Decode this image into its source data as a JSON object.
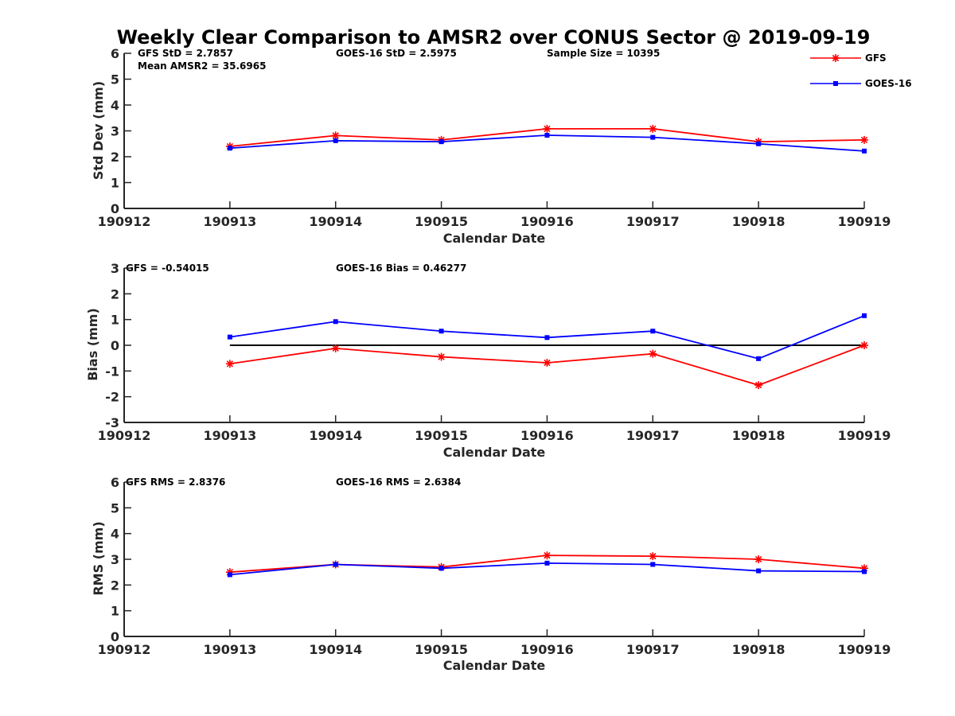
{
  "figure": {
    "title": "Weekly Clear Comparison to AMSR2 over CONUS Sector @ 2019-09-19"
  },
  "legend": [
    {
      "label": "GFS",
      "color": "#ff0000",
      "marker": "asterisk"
    },
    {
      "label": "GOES-16",
      "color": "#0000ff",
      "marker": "square"
    }
  ],
  "chart_data": [
    {
      "type": "line",
      "xlabel": "Calendar Date",
      "ylabel": "Std Dev (mm)",
      "x_ticks": [
        "190912",
        "190913",
        "190914",
        "190915",
        "190916",
        "190917",
        "190918",
        "190919"
      ],
      "xlim": [
        "190912",
        "190919"
      ],
      "ylim": [
        0,
        6
      ],
      "y_ticks": [
        0,
        1,
        2,
        3,
        4,
        5,
        6
      ],
      "x": [
        "190913",
        "190914",
        "190915",
        "190916",
        "190917",
        "190918",
        "190919"
      ],
      "series": [
        {
          "name": "GFS",
          "color": "#ff0000",
          "values": [
            2.4,
            2.82,
            2.65,
            3.08,
            3.08,
            2.58,
            2.65
          ]
        },
        {
          "name": "GOES-16",
          "color": "#0000ff",
          "values": [
            2.33,
            2.62,
            2.58,
            2.83,
            2.75,
            2.5,
            2.22
          ]
        }
      ],
      "annotations": [
        "GFS StD = 2.7857",
        "Mean AMSR2 = 35.6965",
        "GOES-16 StD = 2.5975",
        "Sample Size = 10395"
      ]
    },
    {
      "type": "line",
      "xlabel": "Calendar Date",
      "ylabel": "Bias (mm)",
      "x_ticks": [
        "190912",
        "190913",
        "190914",
        "190915",
        "190916",
        "190917",
        "190918",
        "190919"
      ],
      "xlim": [
        "190912",
        "190919"
      ],
      "ylim": [
        -3,
        3
      ],
      "y_ticks": [
        -3,
        -2,
        -1,
        0,
        1,
        2,
        3
      ],
      "zero_line": true,
      "x": [
        "190913",
        "190914",
        "190915",
        "190916",
        "190917",
        "190918",
        "190919"
      ],
      "series": [
        {
          "name": "GFS",
          "color": "#ff0000",
          "values": [
            -0.72,
            -0.12,
            -0.45,
            -0.68,
            -0.33,
            -1.55,
            0.0
          ]
        },
        {
          "name": "GOES-16",
          "color": "#0000ff",
          "values": [
            0.32,
            0.92,
            0.55,
            0.3,
            0.55,
            -0.52,
            1.15
          ]
        }
      ],
      "annotations": [
        "GFS = -0.54015",
        "GOES-16 Bias  = 0.46277"
      ]
    },
    {
      "type": "line",
      "xlabel": "Calendar Date",
      "ylabel": "RMS (mm)",
      "x_ticks": [
        "190912",
        "190913",
        "190914",
        "190915",
        "190916",
        "190917",
        "190918",
        "190919"
      ],
      "xlim": [
        "190912",
        "190919"
      ],
      "ylim": [
        0,
        6
      ],
      "y_ticks": [
        0,
        1,
        2,
        3,
        4,
        5,
        6
      ],
      "x": [
        "190913",
        "190914",
        "190915",
        "190916",
        "190917",
        "190918",
        "190919"
      ],
      "series": [
        {
          "name": "GFS",
          "color": "#ff0000",
          "values": [
            2.5,
            2.8,
            2.7,
            3.15,
            3.12,
            3.0,
            2.65
          ]
        },
        {
          "name": "GOES-16",
          "color": "#0000ff",
          "values": [
            2.4,
            2.8,
            2.65,
            2.85,
            2.8,
            2.55,
            2.52
          ]
        }
      ],
      "annotations": [
        "GFS RMS = 2.8376",
        "GOES-16 RMS = 2.6384"
      ]
    }
  ]
}
